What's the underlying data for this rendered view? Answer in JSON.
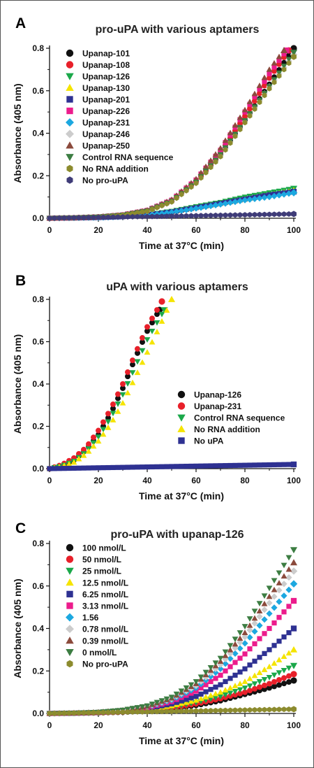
{
  "chart_data": [
    {
      "panel": "A",
      "type": "scatter",
      "title": "pro-uPA with various aptamers",
      "xlabel": "Time at 37°C (min)",
      "ylabel": "Absorbance (405 nm)",
      "xlim": [
        0,
        100
      ],
      "ylim": [
        0,
        0.8
      ],
      "xticks": [
        0,
        20,
        40,
        60,
        80,
        100
      ],
      "yticks": [
        0.0,
        0.2,
        0.4,
        0.6,
        0.8
      ],
      "legend_position": "top-left",
      "series": [
        {
          "name": "Upanap-101",
          "color": "#111111",
          "marker": "circle",
          "x": [
            0,
            10,
            20,
            30,
            40,
            50,
            60,
            70,
            80,
            90,
            100
          ],
          "y": [
            0.0,
            0.002,
            0.006,
            0.015,
            0.035,
            0.08,
            0.17,
            0.3,
            0.46,
            0.63,
            0.8
          ]
        },
        {
          "name": "Upanap-108",
          "color": "#e8202a",
          "marker": "circle",
          "x": [
            0,
            10,
            20,
            30,
            40,
            50,
            60,
            70,
            80,
            90,
            98
          ],
          "y": [
            0.0,
            0.002,
            0.006,
            0.015,
            0.035,
            0.08,
            0.17,
            0.31,
            0.48,
            0.66,
            0.79
          ]
        },
        {
          "name": "Upanap-126",
          "color": "#1aa84a",
          "marker": "triangle-down",
          "x": [
            0,
            10,
            20,
            30,
            40,
            50,
            60,
            70,
            80,
            90,
            100
          ],
          "y": [
            0.0,
            0.001,
            0.003,
            0.008,
            0.017,
            0.033,
            0.055,
            0.075,
            0.1,
            0.12,
            0.14
          ]
        },
        {
          "name": "Upanap-130",
          "color": "#f5e400",
          "marker": "triangle-up",
          "x": [
            0,
            10,
            20,
            30,
            40,
            50,
            60,
            70,
            80,
            90,
            100
          ],
          "y": [
            0.0,
            0.001,
            0.003,
            0.007,
            0.015,
            0.03,
            0.05,
            0.07,
            0.09,
            0.11,
            0.13
          ]
        },
        {
          "name": "Upanap-201",
          "color": "#2e3192",
          "marker": "square",
          "x": [
            0,
            10,
            20,
            30,
            40,
            50,
            60,
            70,
            80,
            90,
            100
          ],
          "y": [
            0.0,
            0.001,
            0.003,
            0.007,
            0.015,
            0.03,
            0.05,
            0.07,
            0.09,
            0.11,
            0.125
          ]
        },
        {
          "name": "Upanap-226",
          "color": "#ec1c8c",
          "marker": "square",
          "x": [
            0,
            10,
            20,
            30,
            40,
            50,
            60,
            70,
            80,
            90,
            97
          ],
          "y": [
            0.0,
            0.002,
            0.006,
            0.016,
            0.037,
            0.085,
            0.18,
            0.32,
            0.5,
            0.68,
            0.79
          ]
        },
        {
          "name": "Upanap-231",
          "color": "#1ca8e0",
          "marker": "diamond",
          "x": [
            0,
            10,
            20,
            30,
            40,
            50,
            60,
            70,
            80,
            90,
            100
          ],
          "y": [
            0.0,
            0.001,
            0.003,
            0.007,
            0.014,
            0.028,
            0.046,
            0.065,
            0.085,
            0.1,
            0.12
          ]
        },
        {
          "name": "Upanap-246",
          "color": "#cccccc",
          "marker": "diamond",
          "x": [
            0,
            10,
            20,
            30,
            40,
            50,
            60,
            70,
            80,
            90,
            100
          ],
          "y": [
            0.0,
            0.002,
            0.005,
            0.014,
            0.033,
            0.078,
            0.165,
            0.295,
            0.455,
            0.62,
            0.77
          ]
        },
        {
          "name": "Upanap-250",
          "color": "#8b4a3c",
          "marker": "triangle-up",
          "x": [
            0,
            10,
            20,
            30,
            40,
            50,
            60,
            70,
            80,
            90,
            96
          ],
          "y": [
            0.0,
            0.002,
            0.006,
            0.016,
            0.038,
            0.088,
            0.185,
            0.33,
            0.51,
            0.7,
            0.79
          ]
        },
        {
          "name": "Control RNA sequence",
          "color": "#3c7d42",
          "marker": "triangle-down",
          "x": [
            0,
            10,
            20,
            30,
            40,
            50,
            60,
            70,
            80,
            90,
            100
          ],
          "y": [
            0.0,
            0.002,
            0.006,
            0.015,
            0.035,
            0.08,
            0.17,
            0.3,
            0.46,
            0.62,
            0.78
          ]
        },
        {
          "name": "No RNA addition",
          "color": "#8c8b2e",
          "marker": "hexagon",
          "x": [
            0,
            10,
            20,
            30,
            40,
            50,
            60,
            70,
            80,
            90,
            100
          ],
          "y": [
            0.0,
            0.002,
            0.005,
            0.014,
            0.033,
            0.077,
            0.165,
            0.29,
            0.45,
            0.61,
            0.76
          ]
        },
        {
          "name": "No pro-uPA",
          "color": "#3f3c78",
          "marker": "hexagon",
          "x": [
            0,
            10,
            20,
            30,
            40,
            50,
            60,
            70,
            80,
            90,
            100
          ],
          "y": [
            0.0,
            0.002,
            0.004,
            0.006,
            0.008,
            0.01,
            0.012,
            0.014,
            0.016,
            0.018,
            0.02
          ]
        }
      ]
    },
    {
      "panel": "B",
      "type": "scatter",
      "title": "uPA with various aptamers",
      "xlabel": "Time at 37°C (min)",
      "ylabel": "Absorbance (405 nm)",
      "xlim": [
        0,
        100
      ],
      "ylim": [
        0,
        0.8
      ],
      "xticks": [
        0,
        20,
        40,
        60,
        80,
        100
      ],
      "yticks": [
        0.0,
        0.2,
        0.4,
        0.6,
        0.8
      ],
      "legend_position": "center-right",
      "series": [
        {
          "name": "Upanap-126",
          "color": "#111111",
          "marker": "circle",
          "x": [
            0,
            5,
            10,
            15,
            20,
            25,
            30,
            35,
            40,
            45
          ],
          "y": [
            0.0,
            0.015,
            0.04,
            0.09,
            0.16,
            0.26,
            0.38,
            0.52,
            0.65,
            0.75
          ]
        },
        {
          "name": "Upanap-231",
          "color": "#e8202a",
          "marker": "circle",
          "x": [
            0,
            5,
            10,
            15,
            20,
            25,
            30,
            35,
            40,
            46
          ],
          "y": [
            0.0,
            0.018,
            0.05,
            0.1,
            0.18,
            0.28,
            0.4,
            0.54,
            0.67,
            0.79
          ]
        },
        {
          "name": "Control RNA sequence",
          "color": "#1aa84a",
          "marker": "triangle-down",
          "x": [
            0,
            5,
            10,
            15,
            20,
            25,
            30,
            35,
            40,
            47
          ],
          "y": [
            0.0,
            0.012,
            0.035,
            0.08,
            0.15,
            0.24,
            0.35,
            0.48,
            0.61,
            0.75
          ]
        },
        {
          "name": "No RNA addition",
          "color": "#f5e400",
          "marker": "triangle-up",
          "x": [
            0,
            5,
            10,
            15,
            20,
            25,
            30,
            35,
            40,
            45,
            50
          ],
          "y": [
            0.0,
            0.01,
            0.03,
            0.07,
            0.13,
            0.21,
            0.31,
            0.43,
            0.55,
            0.67,
            0.8
          ]
        },
        {
          "name": "No uPA",
          "color": "#2e3192",
          "marker": "square",
          "x": [
            0,
            10,
            20,
            30,
            40,
            50,
            60,
            70,
            80,
            90,
            100
          ],
          "y": [
            0.0,
            0.002,
            0.004,
            0.006,
            0.008,
            0.01,
            0.012,
            0.014,
            0.016,
            0.018,
            0.02
          ]
        }
      ]
    },
    {
      "panel": "C",
      "type": "scatter",
      "title": "pro-uPA with upanap-126",
      "xlabel": "Time at 37°C (min)",
      "ylabel": "Absorbance (405 nm)",
      "xlim": [
        0,
        100
      ],
      "ylim": [
        0,
        0.8
      ],
      "xticks": [
        0,
        20,
        40,
        60,
        80,
        100
      ],
      "yticks": [
        0.0,
        0.2,
        0.4,
        0.6,
        0.8
      ],
      "legend_position": "top-left",
      "series": [
        {
          "name": "100 nmol/L",
          "color": "#111111",
          "marker": "circle",
          "x": [
            0,
            10,
            20,
            30,
            40,
            50,
            60,
            70,
            80,
            90,
            100
          ],
          "y": [
            0.0,
            0.001,
            0.003,
            0.006,
            0.012,
            0.022,
            0.038,
            0.06,
            0.09,
            0.12,
            0.155
          ]
        },
        {
          "name": "50 nmol/L",
          "color": "#e8202a",
          "marker": "circle",
          "x": [
            0,
            10,
            20,
            30,
            40,
            50,
            60,
            70,
            80,
            90,
            100
          ],
          "y": [
            0.0,
            0.001,
            0.003,
            0.007,
            0.014,
            0.026,
            0.045,
            0.07,
            0.1,
            0.14,
            0.185
          ]
        },
        {
          "name": "25 nmol/L",
          "color": "#1aa84a",
          "marker": "triangle-down",
          "x": [
            0,
            10,
            20,
            30,
            40,
            50,
            60,
            70,
            80,
            90,
            100
          ],
          "y": [
            0.0,
            0.001,
            0.003,
            0.008,
            0.016,
            0.03,
            0.052,
            0.08,
            0.12,
            0.17,
            0.225
          ]
        },
        {
          "name": "12.5 nmol/L",
          "color": "#f5e400",
          "marker": "triangle-up",
          "x": [
            0,
            10,
            20,
            30,
            40,
            50,
            60,
            70,
            80,
            90,
            100
          ],
          "y": [
            0.0,
            0.001,
            0.003,
            0.009,
            0.019,
            0.036,
            0.062,
            0.1,
            0.15,
            0.22,
            0.3
          ]
        },
        {
          "name": "6.25 nmol/L",
          "color": "#2e3192",
          "marker": "square",
          "x": [
            0,
            10,
            20,
            30,
            40,
            50,
            60,
            70,
            80,
            90,
            100
          ],
          "y": [
            0.0,
            0.001,
            0.004,
            0.01,
            0.022,
            0.045,
            0.08,
            0.135,
            0.21,
            0.3,
            0.4
          ]
        },
        {
          "name": "3.13 nmol/L",
          "color": "#ec1c8c",
          "marker": "square",
          "x": [
            0,
            10,
            20,
            30,
            40,
            50,
            60,
            70,
            80,
            90,
            100
          ],
          "y": [
            0.0,
            0.002,
            0.005,
            0.012,
            0.027,
            0.056,
            0.105,
            0.18,
            0.28,
            0.4,
            0.53
          ]
        },
        {
          "name": "1.56",
          "color": "#1ca8e0",
          "marker": "diamond",
          "x": [
            0,
            10,
            20,
            30,
            40,
            50,
            60,
            70,
            80,
            90,
            100
          ],
          "y": [
            0.0,
            0.002,
            0.005,
            0.013,
            0.03,
            0.063,
            0.12,
            0.21,
            0.33,
            0.47,
            0.61
          ]
        },
        {
          "name": "0.78 nmol/L",
          "color": "#cccccc",
          "marker": "diamond",
          "x": [
            0,
            10,
            20,
            30,
            40,
            50,
            60,
            70,
            80,
            90,
            100
          ],
          "y": [
            0.0,
            0.002,
            0.006,
            0.014,
            0.032,
            0.068,
            0.13,
            0.23,
            0.36,
            0.52,
            0.67
          ]
        },
        {
          "name": "0.39 nmol/L",
          "color": "#8b4a3c",
          "marker": "triangle-up",
          "x": [
            0,
            10,
            20,
            30,
            40,
            50,
            60,
            70,
            80,
            90,
            100
          ],
          "y": [
            0.0,
            0.002,
            0.006,
            0.015,
            0.034,
            0.072,
            0.14,
            0.245,
            0.38,
            0.55,
            0.71
          ]
        },
        {
          "name": "0 nmol/L",
          "color": "#3c7d42",
          "marker": "triangle-down",
          "x": [
            0,
            10,
            20,
            30,
            40,
            50,
            60,
            70,
            80,
            90,
            100
          ],
          "y": [
            0.0,
            0.002,
            0.006,
            0.016,
            0.036,
            0.077,
            0.15,
            0.26,
            0.41,
            0.59,
            0.77
          ]
        },
        {
          "name": "No pro-uPA",
          "color": "#8c8b2e",
          "marker": "hexagon",
          "x": [
            0,
            10,
            20,
            30,
            40,
            50,
            60,
            70,
            80,
            90,
            100
          ],
          "y": [
            0.0,
            0.002,
            0.004,
            0.006,
            0.008,
            0.01,
            0.012,
            0.014,
            0.016,
            0.018,
            0.02
          ]
        }
      ]
    }
  ]
}
